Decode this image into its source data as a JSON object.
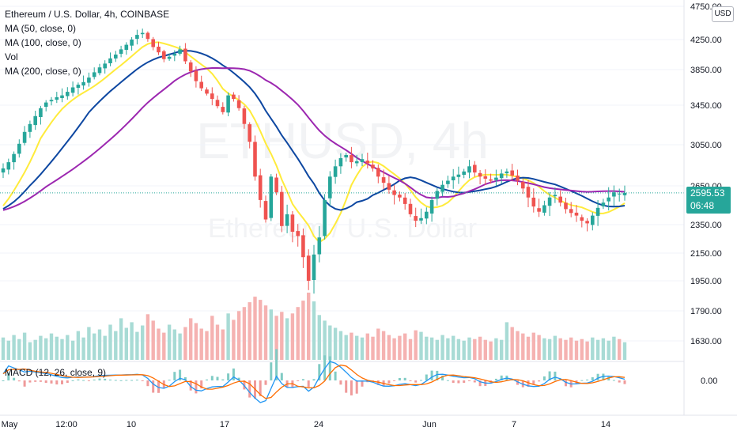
{
  "legend": {
    "title": "Ethereum / U.S. Dollar, 4h, COINBASE",
    "ma50": "MA (50, close, 0)",
    "ma100": "MA (100, close, 0)",
    "vol": "Vol",
    "ma200": "MA (200, close, 0)"
  },
  "macd_legend": "MACD (12, 26, close, 9)",
  "currency_label": "USD",
  "last_price": {
    "value": "2595.53",
    "countdown": "06:48"
  },
  "watermark": {
    "symbol": "ETHUSD, 4h",
    "name": "Ethereum / U.S. Dollar"
  },
  "colors": {
    "up": "#26a69a",
    "down": "#ef5350",
    "ma50": "#ffeb3b",
    "ma100": "#0d47a1",
    "ma200": "#9c27b0",
    "macd": "#2196f3",
    "signal": "#ff6d00",
    "price_line": "#26a69a"
  },
  "chart_data": {
    "type": "candlestick",
    "symbol": "Ethereum / U.S. Dollar",
    "interval": "4h",
    "exchange": "COINBASE",
    "y_ticks": [
      "4750.00",
      "4250.00",
      "3850.00",
      "3450.00",
      "3050.00",
      "2650.00",
      "2350.00",
      "2150.00",
      "1950.00",
      "1790.00",
      "1630.00"
    ],
    "macd_ticks": [
      "0.00"
    ],
    "x_ticks": [
      "May",
      "12:00",
      "10",
      "17",
      "24",
      "Jun",
      "7",
      "14"
    ],
    "last_price": 2595.53,
    "close_series": [
      2820,
      2880,
      2960,
      3060,
      3180,
      3260,
      3340,
      3420,
      3480,
      3510,
      3540,
      3560,
      3600,
      3650,
      3680,
      3710,
      3760,
      3820,
      3880,
      3930,
      4000,
      4050,
      4120,
      4180,
      4250,
      4320,
      4350,
      4260,
      4150,
      4080,
      3990,
      4020,
      4060,
      4120,
      3960,
      3830,
      3720,
      3640,
      3580,
      3520,
      3440,
      3380,
      3560,
      3520,
      3420,
      3260,
      3080,
      2740,
      2540,
      2390,
      2740,
      2600,
      2340,
      2430,
      2300,
      2270,
      2120,
      1950,
      2140,
      2260,
      2540,
      2740,
      2840,
      2920,
      2950,
      2880,
      2890,
      2910,
      2870,
      2820,
      2740,
      2680,
      2620,
      2580,
      2560,
      2510,
      2430,
      2380,
      2400,
      2450,
      2540,
      2610,
      2660,
      2700,
      2740,
      2760,
      2790,
      2840,
      2780,
      2740,
      2720,
      2700,
      2730,
      2770,
      2790,
      2750,
      2700,
      2630,
      2560,
      2490,
      2450,
      2500,
      2560,
      2580,
      2520,
      2470,
      2440,
      2420,
      2380,
      2360,
      2420,
      2480,
      2520,
      2560,
      2600,
      2590,
      2595.53
    ],
    "volume": [
      28,
      24,
      31,
      26,
      34,
      22,
      25,
      30,
      27,
      33,
      29,
      26,
      31,
      24,
      36,
      28,
      41,
      33,
      38,
      30,
      44,
      36,
      52,
      40,
      47,
      35,
      43,
      57,
      49,
      39,
      34,
      44,
      38,
      33,
      41,
      52,
      46,
      39,
      36,
      55,
      44,
      38,
      58,
      50,
      61,
      66,
      72,
      79,
      75,
      68,
      63,
      55,
      60,
      52,
      58,
      66,
      74,
      84,
      73,
      56,
      49,
      43,
      40,
      36,
      31,
      34,
      30,
      28,
      33,
      29,
      39,
      36,
      31,
      27,
      30,
      33,
      26,
      37,
      35,
      29,
      28,
      25,
      31,
      27,
      30,
      26,
      24,
      28,
      26,
      29,
      25,
      23,
      27,
      25,
      47,
      41,
      36,
      33,
      29,
      34,
      31,
      27,
      26,
      30,
      27,
      25,
      28,
      24,
      26,
      23,
      28,
      25,
      27,
      24,
      29,
      26,
      22
    ],
    "series": [
      {
        "name": "MA (50, close, 0)",
        "color": "#ffeb3b"
      },
      {
        "name": "MA (100, close, 0)",
        "color": "#0d47a1"
      },
      {
        "name": "MA (200, close, 0)",
        "color": "#9c27b0"
      }
    ]
  }
}
